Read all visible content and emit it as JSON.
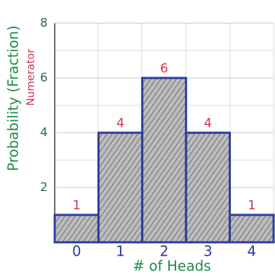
{
  "chart_data": {
    "type": "bar",
    "y_label": "Probability (Fraction)",
    "y_sublabel": "Numerator",
    "x_label": "# of Heads",
    "categories": [
      "0",
      "1",
      "2",
      "3",
      "4"
    ],
    "values": [
      1,
      4,
      6,
      4,
      1
    ],
    "color": "#2b3a9e",
    "fill": "#9a9a9a",
    "ylim": [
      0,
      8
    ],
    "yticks": [
      2,
      4,
      6,
      8
    ],
    "grid": true
  }
}
